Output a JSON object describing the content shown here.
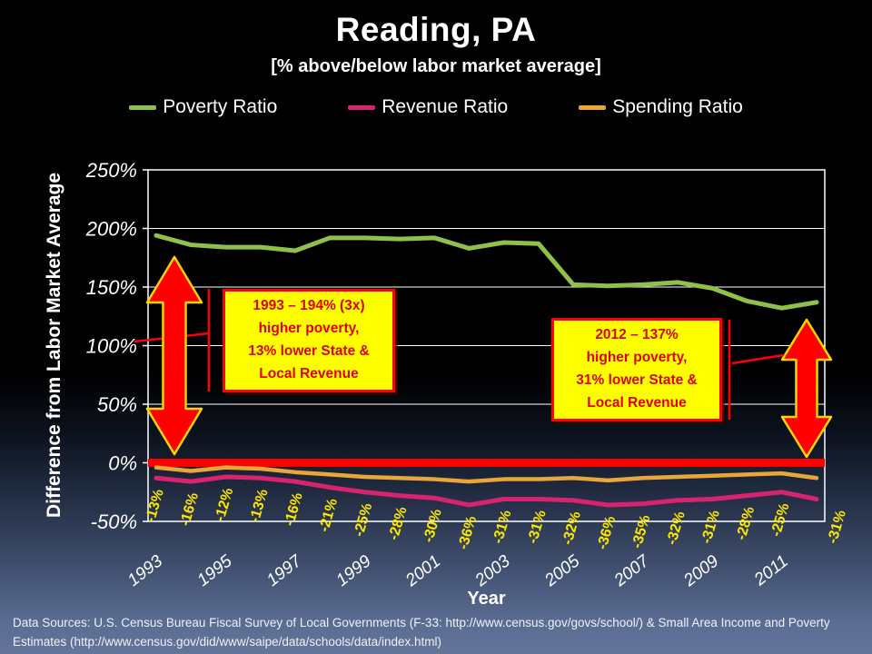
{
  "slide": {
    "title": "Reading, PA",
    "subtitle": "[% above/below labor market average]",
    "footer": "Data Sources: U.S. Census Bureau Fiscal Survey of Local Governments (F-33: http://www.census.gov/govs/school/) & Small Area Income and Poverty Estimates (http://www.census.gov/did/www/saipe/data/schools/data/index.html)"
  },
  "legend": [
    {
      "label": "Poverty Ratio",
      "color": "#8ec04a"
    },
    {
      "label": "Revenue Ratio",
      "color": "#d8246f"
    },
    {
      "label": "Spending Ratio",
      "color": "#eaa63b"
    }
  ],
  "chart_data": {
    "type": "line",
    "title": "Reading, PA",
    "subtitle": "[% above/below labor market average]",
    "xlabel": "Year",
    "ylabel": "Difference from Labor Market Average",
    "ylim": [
      -50,
      250
    ],
    "grid": true,
    "legend_position": "top",
    "x": [
      1993,
      1994,
      1995,
      1996,
      1997,
      1998,
      1999,
      2000,
      2001,
      2002,
      2003,
      2004,
      2005,
      2006,
      2007,
      2008,
      2009,
      2010,
      2011,
      2012
    ],
    "xticks": [
      "1993",
      "1995",
      "1997",
      "1999",
      "2001",
      "2003",
      "2005",
      "2007",
      "2009",
      "2011"
    ],
    "yticks": [
      "250%",
      "200%",
      "150%",
      "100%",
      "50%",
      "0%",
      "-50%"
    ],
    "ytick_values": [
      250,
      200,
      150,
      100,
      50,
      0,
      -50
    ],
    "series": [
      {
        "name": "Poverty Ratio",
        "color": "#8ec04a",
        "width": 5,
        "values": [
          194,
          186,
          184,
          184,
          181,
          192,
          192,
          191,
          192,
          183,
          188,
          187,
          152,
          151,
          152,
          154,
          149,
          138,
          132,
          137
        ]
      },
      {
        "name": "Revenue Ratio",
        "color": "#d8246f",
        "width": 5,
        "values": [
          -13,
          -16,
          -12,
          -13,
          -16,
          -21,
          -25,
          -28,
          -30,
          -36,
          -31,
          -31,
          -32,
          -36,
          -35,
          -32,
          -31,
          -28,
          -25,
          -31
        ]
      },
      {
        "name": "Spending Ratio",
        "color": "#eaa63b",
        "width": 4.5,
        "values": [
          -4,
          -7,
          -4,
          -5,
          -8,
          -10,
          -12,
          -13,
          -14,
          -16,
          -14,
          -14,
          -13,
          -15,
          -13,
          -12,
          -11,
          -10,
          -9,
          -13
        ]
      }
    ],
    "reference_line": {
      "value": 0,
      "color": "#ff0000",
      "width": 9
    },
    "data_labels": {
      "series": "Revenue Ratio",
      "color": "#ffe800",
      "values": [
        "-13%",
        "-16%",
        "-12%",
        "-13%",
        "-16%",
        "-21%",
        "-25%",
        "-28%",
        "-30%",
        "-36%",
        "-31%",
        "-31%",
        "-32%",
        "-36%",
        "-35%",
        "-32%",
        "-31%",
        "-28%",
        "-25%",
        "-31%"
      ]
    }
  },
  "annotations": {
    "callout_1993": {
      "text": "1993 – 194% (3x)\nhigher poverty,\n13% lower State &\nLocal Revenue"
    },
    "callout_2012": {
      "text": "2012 – 137%\nhigher poverty,\n31% lower State &\nLocal Revenue"
    },
    "arrow_color": "#ff0000",
    "arrow_outline": "#ffd700",
    "leader_color": "#ff0000"
  }
}
